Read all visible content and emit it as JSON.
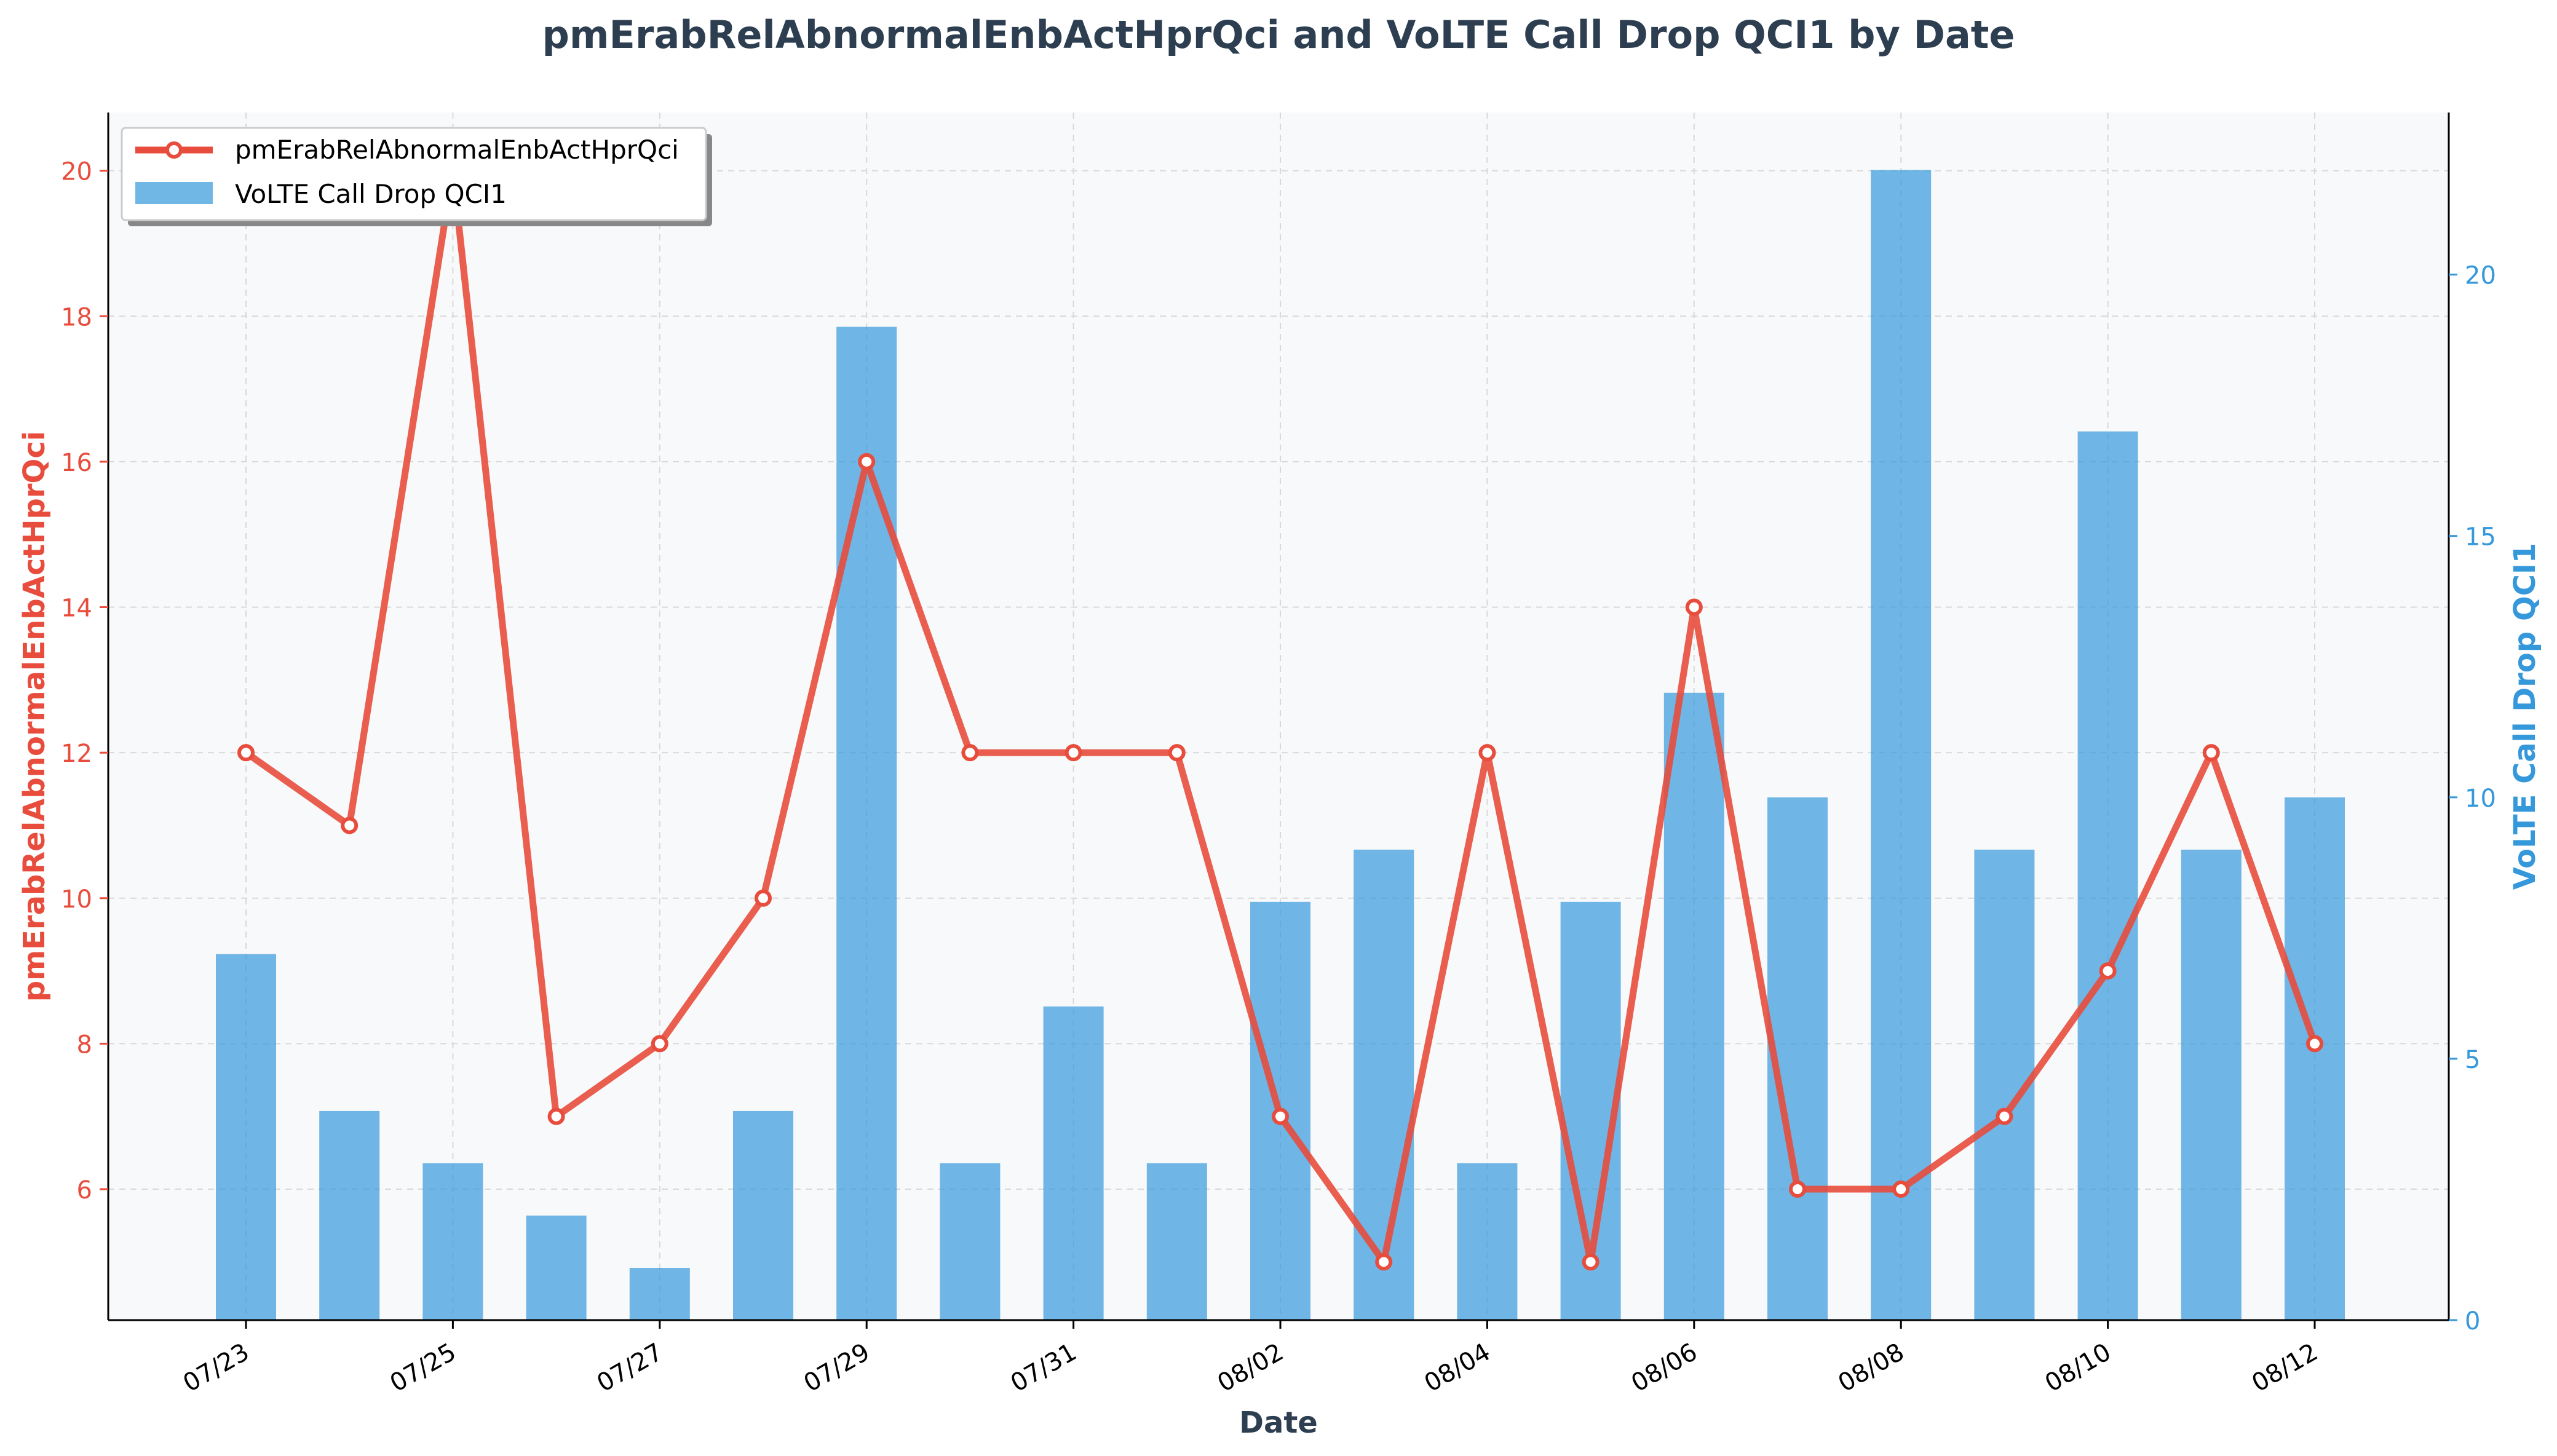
{
  "chart_data": {
    "type": "bar+line",
    "title": "pmErabRelAbnormalEnbActHprQci and VoLTE Call Drop QCI1 by Date",
    "xlabel": "Date",
    "y_left_label": "pmErabRelAbnormalEnbActHprQci",
    "y_right_label": "VoLTE Call Drop QCI1",
    "categories": [
      "07/23",
      "07/24",
      "07/25",
      "07/26",
      "07/27",
      "07/28",
      "07/29",
      "07/30",
      "07/31",
      "08/01",
      "08/02",
      "08/03",
      "08/04",
      "08/05",
      "08/06",
      "08/07",
      "08/08",
      "08/09",
      "08/10",
      "08/11",
      "08/12"
    ],
    "x_tick_labels": [
      "07/23",
      "07/25",
      "07/27",
      "07/29",
      "07/31",
      "08/02",
      "08/04",
      "08/06",
      "08/08",
      "08/10",
      "08/12"
    ],
    "y_left_ticks": [
      "6",
      "8",
      "10",
      "12",
      "14",
      "16",
      "18",
      "20"
    ],
    "y_right_ticks": [
      "0",
      "5",
      "10",
      "15",
      "20"
    ],
    "y_left_lim": [
      4.2,
      20.8
    ],
    "y_right_lim": [
      0,
      23.1
    ],
    "grid": true,
    "legend_position": "upper-left",
    "series": [
      {
        "name": "pmErabRelAbnormalEnbActHprQci",
        "type": "line",
        "axis": "left",
        "color": "#e74c3c",
        "values": [
          12,
          11,
          20,
          7,
          8,
          10,
          16,
          12,
          12,
          12,
          7,
          5,
          12,
          5,
          14,
          6,
          6,
          7,
          9,
          12,
          8
        ]
      },
      {
        "name": "VoLTE Call Drop QCI1",
        "type": "bar",
        "axis": "right",
        "color": "#3498db",
        "values": [
          7,
          4,
          3,
          2,
          1,
          4,
          19,
          3,
          6,
          3,
          8,
          9,
          3,
          8,
          12,
          10,
          22,
          9,
          17,
          9,
          10
        ]
      }
    ],
    "colors": {
      "left_axis": "#e74c3c",
      "right_axis": "#3498db",
      "title": "#2c3e50",
      "plot_bg": "#f8f9fa"
    }
  }
}
